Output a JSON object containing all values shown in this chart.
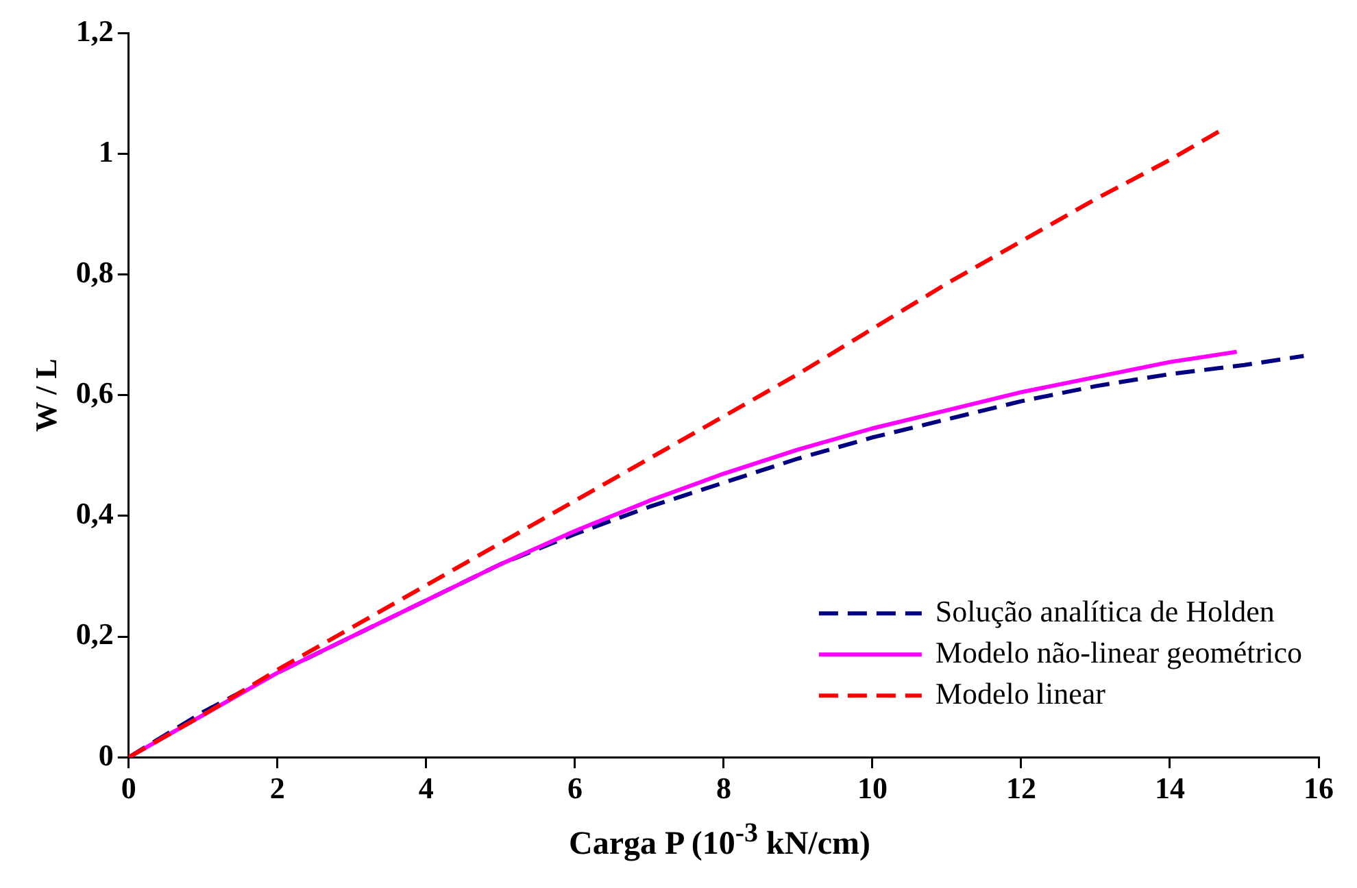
{
  "chart_data": {
    "type": "line",
    "xlabel": "Carga P (10$^{-3}$ kN/cm)",
    "ylabel": "W / L",
    "xlim": [
      0,
      16
    ],
    "xticks": [
      0,
      2,
      4,
      6,
      8,
      10,
      12,
      14,
      16
    ],
    "ylim": [
      0,
      1.2
    ],
    "yticks": [
      0,
      {
        "value": 0.2,
        "label": "0,2"
      },
      {
        "value": 0.4,
        "label": "0,4"
      },
      {
        "value": 0.6,
        "label": "0,6"
      },
      {
        "value": 0.8,
        "label": "0,8"
      },
      1,
      {
        "value": 1.2,
        "label": "1,2"
      }
    ],
    "grid": false,
    "legend": "bottom right",
    "marker": "none",
    "series": [
      {
        "name": "Solução analítica de Holden",
        "color": "#000080",
        "line_style": "dashed",
        "x": [
          0,
          1,
          2,
          3,
          4,
          5,
          6,
          7,
          8,
          9,
          10,
          11,
          12,
          13,
          14,
          15,
          15.8
        ],
        "values": [
          0,
          0.075,
          0.14,
          0.2,
          0.26,
          0.32,
          0.37,
          0.415,
          0.455,
          0.495,
          0.53,
          0.56,
          0.59,
          0.615,
          0.635,
          0.65,
          0.665
        ]
      },
      {
        "name": "Modelo não-linear geométrico",
        "color": "#ff00ff",
        "line_style": "solid",
        "x": [
          0,
          1,
          2,
          3,
          4,
          5,
          6,
          7,
          8,
          9,
          10,
          11,
          12,
          13,
          14,
          14.9
        ],
        "values": [
          0,
          0.07,
          0.14,
          0.2,
          0.26,
          0.32,
          0.375,
          0.425,
          0.47,
          0.51,
          0.545,
          0.575,
          0.605,
          0.63,
          0.655,
          0.672
        ]
      },
      {
        "name": "Modelo linear",
        "color": "#ff0000",
        "line_style": "dashed",
        "x": [
          0,
          1,
          2,
          3,
          4,
          5,
          6,
          7,
          8,
          9,
          10,
          11,
          12,
          13,
          14,
          14.7
        ],
        "values": [
          0,
          0.07,
          0.145,
          0.215,
          0.285,
          0.355,
          0.425,
          0.495,
          0.565,
          0.635,
          0.71,
          0.785,
          0.855,
          0.925,
          0.99,
          1.04
        ]
      }
    ]
  }
}
